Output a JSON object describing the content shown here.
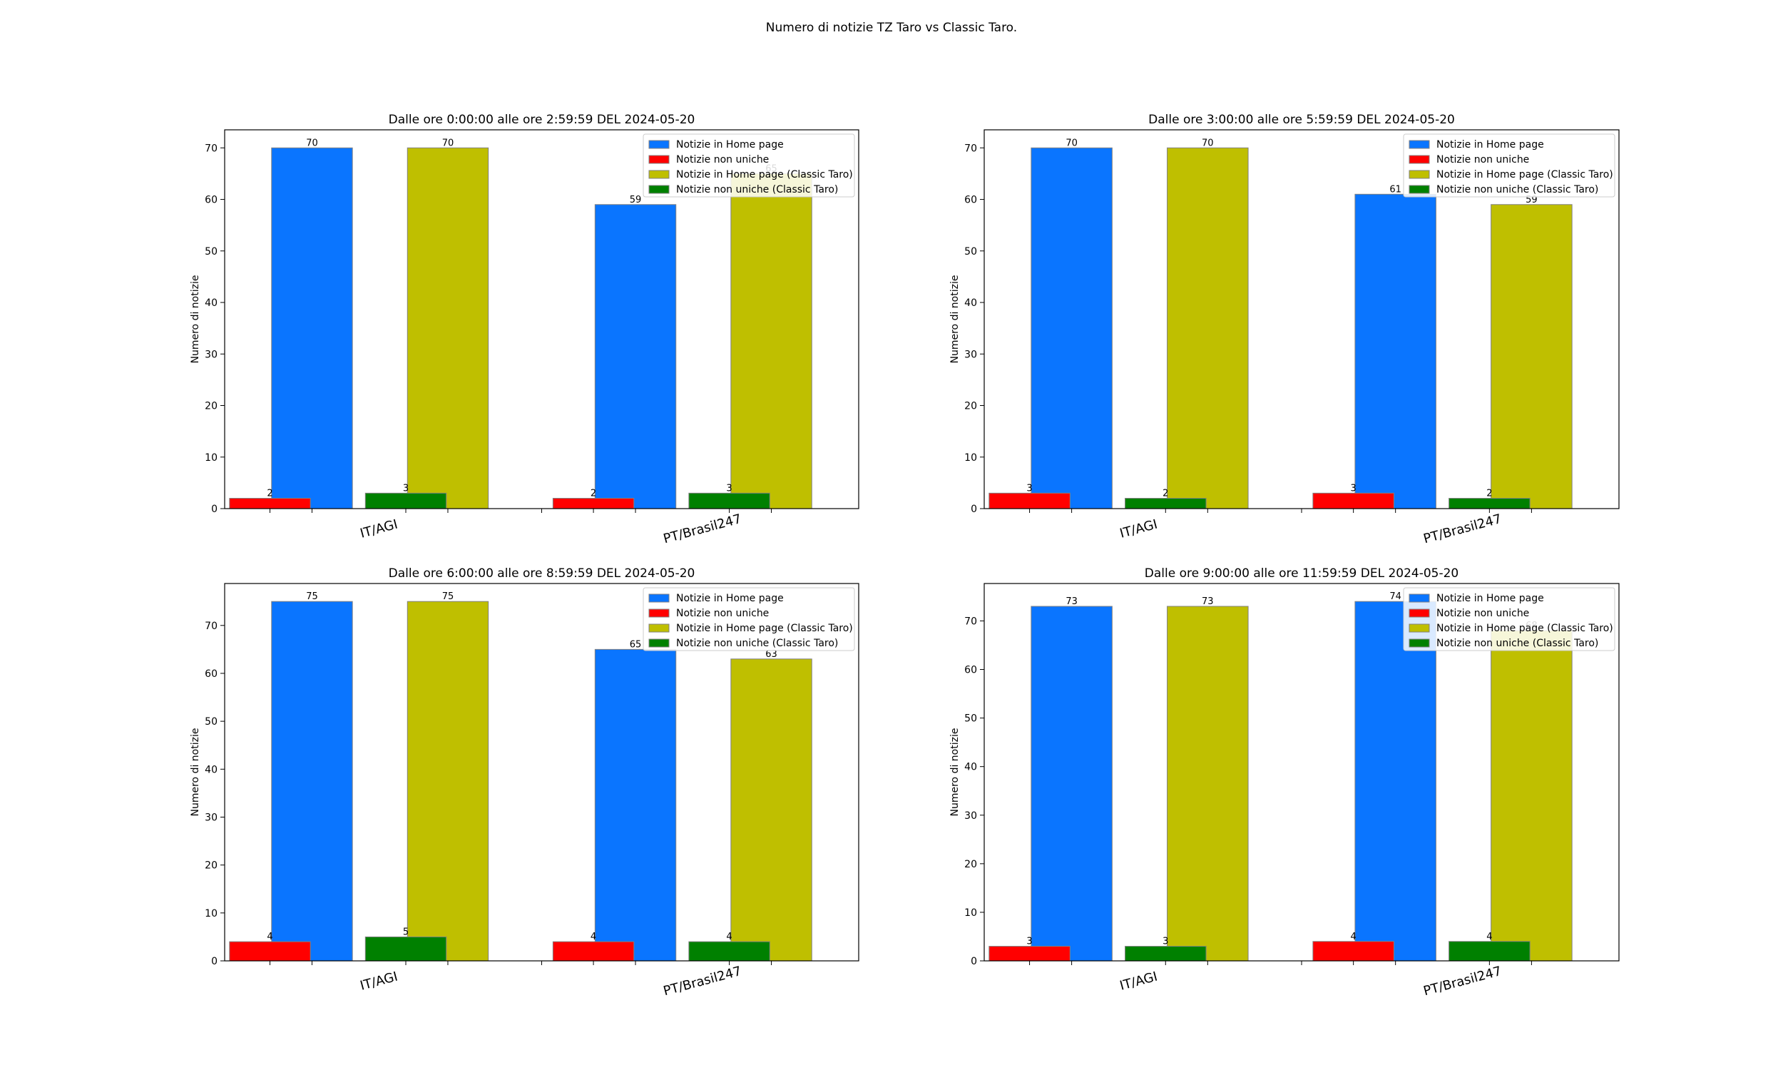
{
  "suptitle": "Numero di notizie TZ Taro vs Classic Taro.",
  "colors": {
    "home": "#0a75ff",
    "nonuniche": "#ff0000",
    "home_classic": "#bfbf00",
    "nonuniche_classic": "#008000"
  },
  "chart_data": [
    {
      "type": "bar",
      "title": "Dalle ore 0:00:00 alle ore 2:59:59 DEL 2024-05-20",
      "xlabel": "",
      "ylabel": "Numero di notizie",
      "categories": [
        "IT/AGI",
        "PT/Brasil247"
      ],
      "ylim": [
        0,
        73.5
      ],
      "yticks": [
        0,
        10,
        20,
        30,
        40,
        50,
        60,
        70
      ],
      "legend": "upper right",
      "series": [
        {
          "name": "Notizie in Home page",
          "values": [
            70,
            59
          ]
        },
        {
          "name": "Notizie non uniche",
          "values": [
            2,
            2
          ]
        },
        {
          "name": "Notizie in Home page (Classic Taro)",
          "values": [
            70,
            65
          ]
        },
        {
          "name": "Notizie non uniche (Classic Taro)",
          "values": [
            3,
            3
          ]
        }
      ]
    },
    {
      "type": "bar",
      "title": "Dalle ore 3:00:00 alle ore 5:59:59 DEL 2024-05-20",
      "xlabel": "",
      "ylabel": "Numero di notizie",
      "categories": [
        "IT/AGI",
        "PT/Brasil247"
      ],
      "ylim": [
        0,
        73.5
      ],
      "yticks": [
        0,
        10,
        20,
        30,
        40,
        50,
        60,
        70
      ],
      "legend": "upper right",
      "series": [
        {
          "name": "Notizie in Home page",
          "values": [
            70,
            61
          ]
        },
        {
          "name": "Notizie non uniche",
          "values": [
            3,
            3
          ]
        },
        {
          "name": "Notizie in Home page (Classic Taro)",
          "values": [
            70,
            59
          ]
        },
        {
          "name": "Notizie non uniche (Classic Taro)",
          "values": [
            2,
            2
          ]
        }
      ]
    },
    {
      "type": "bar",
      "title": "Dalle ore 6:00:00 alle ore 8:59:59 DEL 2024-05-20",
      "xlabel": "",
      "ylabel": "Numero di notizie",
      "categories": [
        "IT/AGI",
        "PT/Brasil247"
      ],
      "ylim": [
        0,
        78.75
      ],
      "yticks": [
        0,
        10,
        20,
        30,
        40,
        50,
        60,
        70
      ],
      "legend": "upper right",
      "series": [
        {
          "name": "Notizie in Home page",
          "values": [
            75,
            65
          ]
        },
        {
          "name": "Notizie non uniche",
          "values": [
            4,
            4
          ]
        },
        {
          "name": "Notizie in Home page (Classic Taro)",
          "values": [
            75,
            63
          ]
        },
        {
          "name": "Notizie non uniche (Classic Taro)",
          "values": [
            5,
            4
          ]
        }
      ]
    },
    {
      "type": "bar",
      "title": "Dalle ore 9:00:00 alle ore 11:59:59 DEL 2024-05-20",
      "xlabel": "",
      "ylabel": "Numero di notizie",
      "categories": [
        "IT/AGI",
        "PT/Brasil247"
      ],
      "ylim": [
        0,
        77.7
      ],
      "yticks": [
        0,
        10,
        20,
        30,
        40,
        50,
        60,
        70
      ],
      "legend": "upper right",
      "series": [
        {
          "name": "Notizie in Home page",
          "values": [
            73,
            74
          ]
        },
        {
          "name": "Notizie non uniche",
          "values": [
            3,
            4
          ]
        },
        {
          "name": "Notizie in Home page (Classic Taro)",
          "values": [
            73,
            68
          ]
        },
        {
          "name": "Notizie non uniche (Classic Taro)",
          "values": [
            3,
            4
          ]
        }
      ]
    }
  ]
}
